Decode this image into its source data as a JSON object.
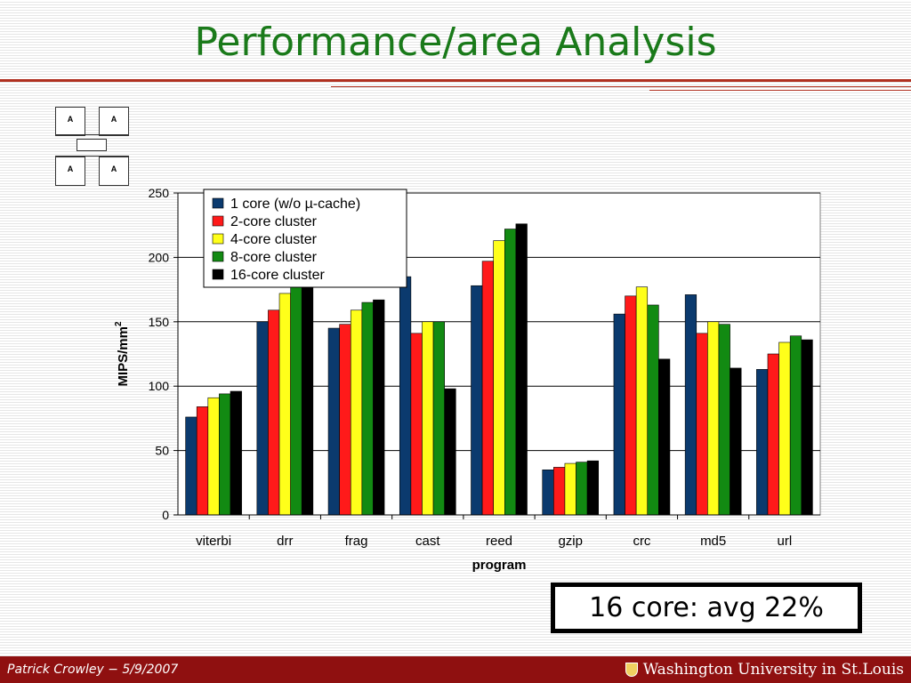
{
  "slide": {
    "title": "Performance/area Analysis",
    "callout": "16 core: avg 22%",
    "footer_left": "Patrick Crowley − 5/9/2007",
    "footer_right": "Washington University in St.Louis",
    "diagram_boxes": [
      "A",
      "A",
      "A",
      "A"
    ]
  },
  "colors": {
    "title": "#1a7a1a",
    "footer_bg": "#8f1010",
    "rule": "#b03020"
  },
  "chart_data": {
    "type": "bar",
    "categories": [
      "viterbi",
      "drr",
      "frag",
      "cast",
      "reed",
      "gzip",
      "crc",
      "md5",
      "url"
    ],
    "series": [
      {
        "name": "1 core (w/o µ-cache)",
        "color": "#0b3a6e",
        "values": [
          76,
          150,
          145,
          185,
          178,
          35,
          156,
          171,
          113
        ]
      },
      {
        "name": "2-core cluster",
        "color": "#ff1a1a",
        "values": [
          84,
          159,
          148,
          141,
          197,
          37,
          170,
          141,
          125
        ]
      },
      {
        "name": "4-core cluster",
        "color": "#ffff1a",
        "values": [
          91,
          172,
          159,
          150,
          213,
          40,
          177,
          150,
          134
        ]
      },
      {
        "name": "8-core cluster",
        "color": "#128a12",
        "values": [
          94,
          180,
          165,
          150,
          222,
          41,
          163,
          148,
          139
        ]
      },
      {
        "name": "16-core cluster",
        "color": "#000000",
        "values": [
          96,
          182,
          167,
          98,
          226,
          42,
          121,
          114,
          136
        ]
      }
    ],
    "xlabel": "program",
    "ylabel": "MIPS/mm",
    "ylabel_superscript": "2",
    "ylim": [
      0,
      250
    ],
    "yticks": [
      0,
      50,
      100,
      150,
      200,
      250
    ],
    "grid": true,
    "legend_placement": "top-left"
  }
}
